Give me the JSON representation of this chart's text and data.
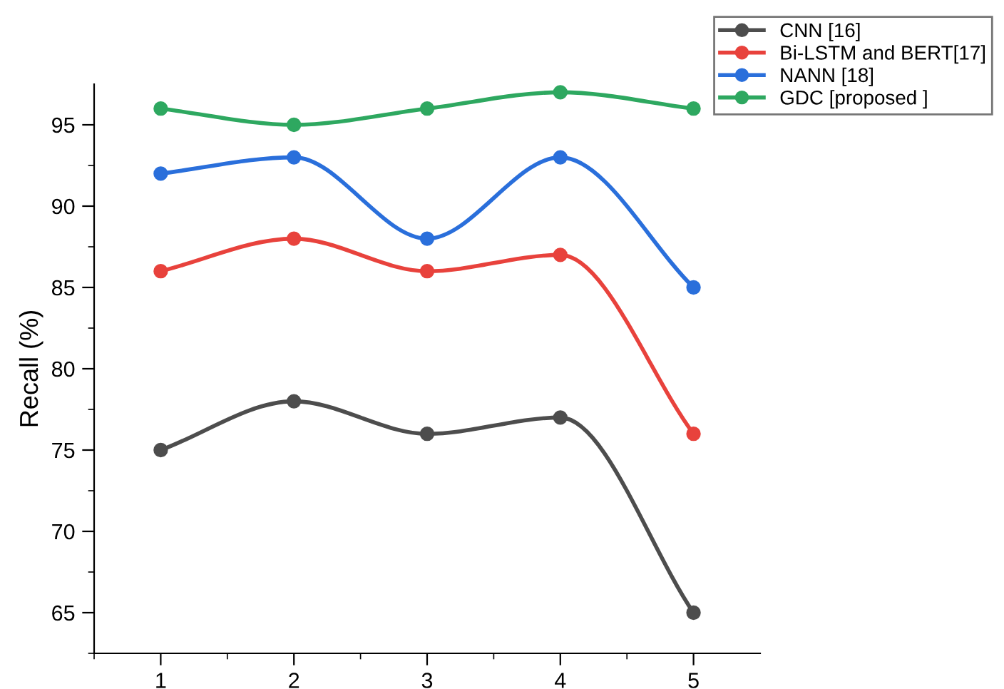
{
  "chart_data": {
    "type": "line",
    "ylabel": "Recall (%)",
    "x": [
      1,
      2,
      3,
      4,
      5
    ],
    "series": [
      {
        "name": "CNN [16]",
        "color": "#4d4d4d",
        "values": [
          75,
          78,
          76,
          77,
          65
        ]
      },
      {
        "name": "Bi-LSTM and BERT[17]",
        "color": "#e8423c",
        "values": [
          86,
          88,
          86,
          87,
          76
        ]
      },
      {
        "name": "NANN [18]",
        "color": "#2a6fdb",
        "values": [
          92,
          93,
          88,
          93,
          85
        ]
      },
      {
        "name": "GDC [proposed ]",
        "color": "#2ea860",
        "values": [
          96,
          95,
          96,
          97,
          96
        ]
      }
    ],
    "xlim": [
      0.5,
      5.5
    ],
    "ylim": [
      62.5,
      97.5
    ],
    "xticks": [
      1,
      2,
      3,
      4,
      5
    ],
    "yticks": [
      65,
      70,
      75,
      80,
      85,
      90,
      95
    ],
    "marker": "circle",
    "line_style": "solid",
    "legend": "top right",
    "grid": false
  }
}
